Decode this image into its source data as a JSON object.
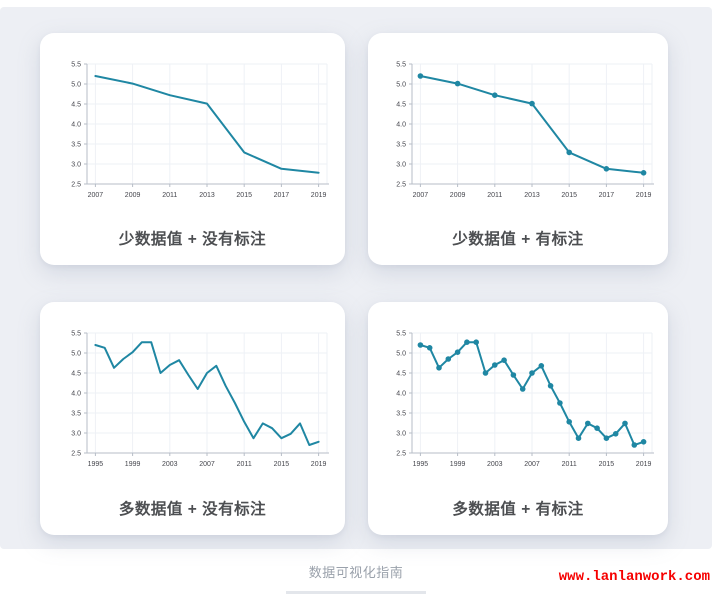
{
  "footer": {
    "caption": "数据可视化指南",
    "watermark": "www.lanlanwork.com"
  },
  "colors": {
    "background": "#edeff4",
    "card": "#ffffff",
    "line": "#1f87a3",
    "axis": "#b7bdc7",
    "grid": "#eef1f6",
    "tick_label": "#45464d",
    "caption": "#4d4f52",
    "footer_text": "#9aa1ab",
    "watermark": "#f60000",
    "divider": "#e3e6eb"
  },
  "chart_data": [
    {
      "id": "few-values-no-annotation",
      "type": "line",
      "caption": "少数据值 + 没有标注",
      "markers": false,
      "x": [
        2007,
        2009,
        2011,
        2013,
        2015,
        2017,
        2019
      ],
      "values": [
        5.2,
        5.01,
        4.72,
        4.51,
        3.29,
        2.88,
        2.78
      ],
      "xticks": [
        2007,
        2009,
        2011,
        2013,
        2015,
        2017,
        2019
      ],
      "yticks": [
        2.5,
        3.0,
        3.5,
        4.0,
        4.5,
        5.0,
        5.5
      ],
      "ylim": [
        2.5,
        5.5
      ],
      "xlabel": "",
      "ylabel": "",
      "grid": true,
      "legend": "none",
      "line_color": "#1f87a3"
    },
    {
      "id": "few-values-with-annotation",
      "type": "line",
      "caption": "少数据值 + 有标注",
      "markers": true,
      "x": [
        2007,
        2009,
        2011,
        2013,
        2015,
        2017,
        2019
      ],
      "values": [
        5.2,
        5.01,
        4.72,
        4.51,
        3.29,
        2.88,
        2.78
      ],
      "xticks": [
        2007,
        2009,
        2011,
        2013,
        2015,
        2017,
        2019
      ],
      "yticks": [
        2.5,
        3.0,
        3.5,
        4.0,
        4.5,
        5.0,
        5.5
      ],
      "ylim": [
        2.5,
        5.5
      ],
      "xlabel": "",
      "ylabel": "",
      "grid": true,
      "legend": "none",
      "line_color": "#1f87a3"
    },
    {
      "id": "many-values-no-annotation",
      "type": "line",
      "caption": "多数据值 + 没有标注",
      "markers": false,
      "x": [
        1995,
        1996,
        1997,
        1998,
        1999,
        2000,
        2001,
        2002,
        2003,
        2004,
        2005,
        2006,
        2007,
        2008,
        2009,
        2010,
        2011,
        2012,
        2013,
        2014,
        2015,
        2016,
        2017,
        2018,
        2019
      ],
      "values": [
        5.2,
        5.13,
        4.63,
        4.85,
        5.02,
        5.27,
        5.27,
        4.5,
        4.7,
        4.82,
        4.45,
        4.1,
        4.5,
        4.68,
        4.18,
        3.75,
        3.28,
        2.87,
        3.24,
        3.12,
        2.87,
        2.98,
        3.24,
        2.7,
        2.78
      ],
      "xticks": [
        1995,
        1999,
        2003,
        2007,
        2011,
        2015,
        2019
      ],
      "yticks": [
        2.5,
        3.0,
        3.5,
        4.0,
        4.5,
        5.0,
        5.5
      ],
      "ylim": [
        2.5,
        5.5
      ],
      "xlabel": "",
      "ylabel": "",
      "grid": true,
      "legend": "none",
      "line_color": "#1f87a3"
    },
    {
      "id": "many-values-with-annotation",
      "type": "line",
      "caption": "多数据值 + 有标注",
      "markers": true,
      "x": [
        1995,
        1996,
        1997,
        1998,
        1999,
        2000,
        2001,
        2002,
        2003,
        2004,
        2005,
        2006,
        2007,
        2008,
        2009,
        2010,
        2011,
        2012,
        2013,
        2014,
        2015,
        2016,
        2017,
        2018,
        2019
      ],
      "values": [
        5.2,
        5.13,
        4.63,
        4.85,
        5.02,
        5.27,
        5.27,
        4.5,
        4.7,
        4.82,
        4.45,
        4.1,
        4.5,
        4.68,
        4.18,
        3.75,
        3.28,
        2.87,
        3.24,
        3.12,
        2.87,
        2.98,
        3.24,
        2.7,
        2.78
      ],
      "xticks": [
        1995,
        1999,
        2003,
        2007,
        2011,
        2015,
        2019
      ],
      "yticks": [
        2.5,
        3.0,
        3.5,
        4.0,
        4.5,
        5.0,
        5.5
      ],
      "ylim": [
        2.5,
        5.5
      ],
      "xlabel": "",
      "ylabel": "",
      "grid": true,
      "legend": "none",
      "line_color": "#1f87a3"
    }
  ]
}
